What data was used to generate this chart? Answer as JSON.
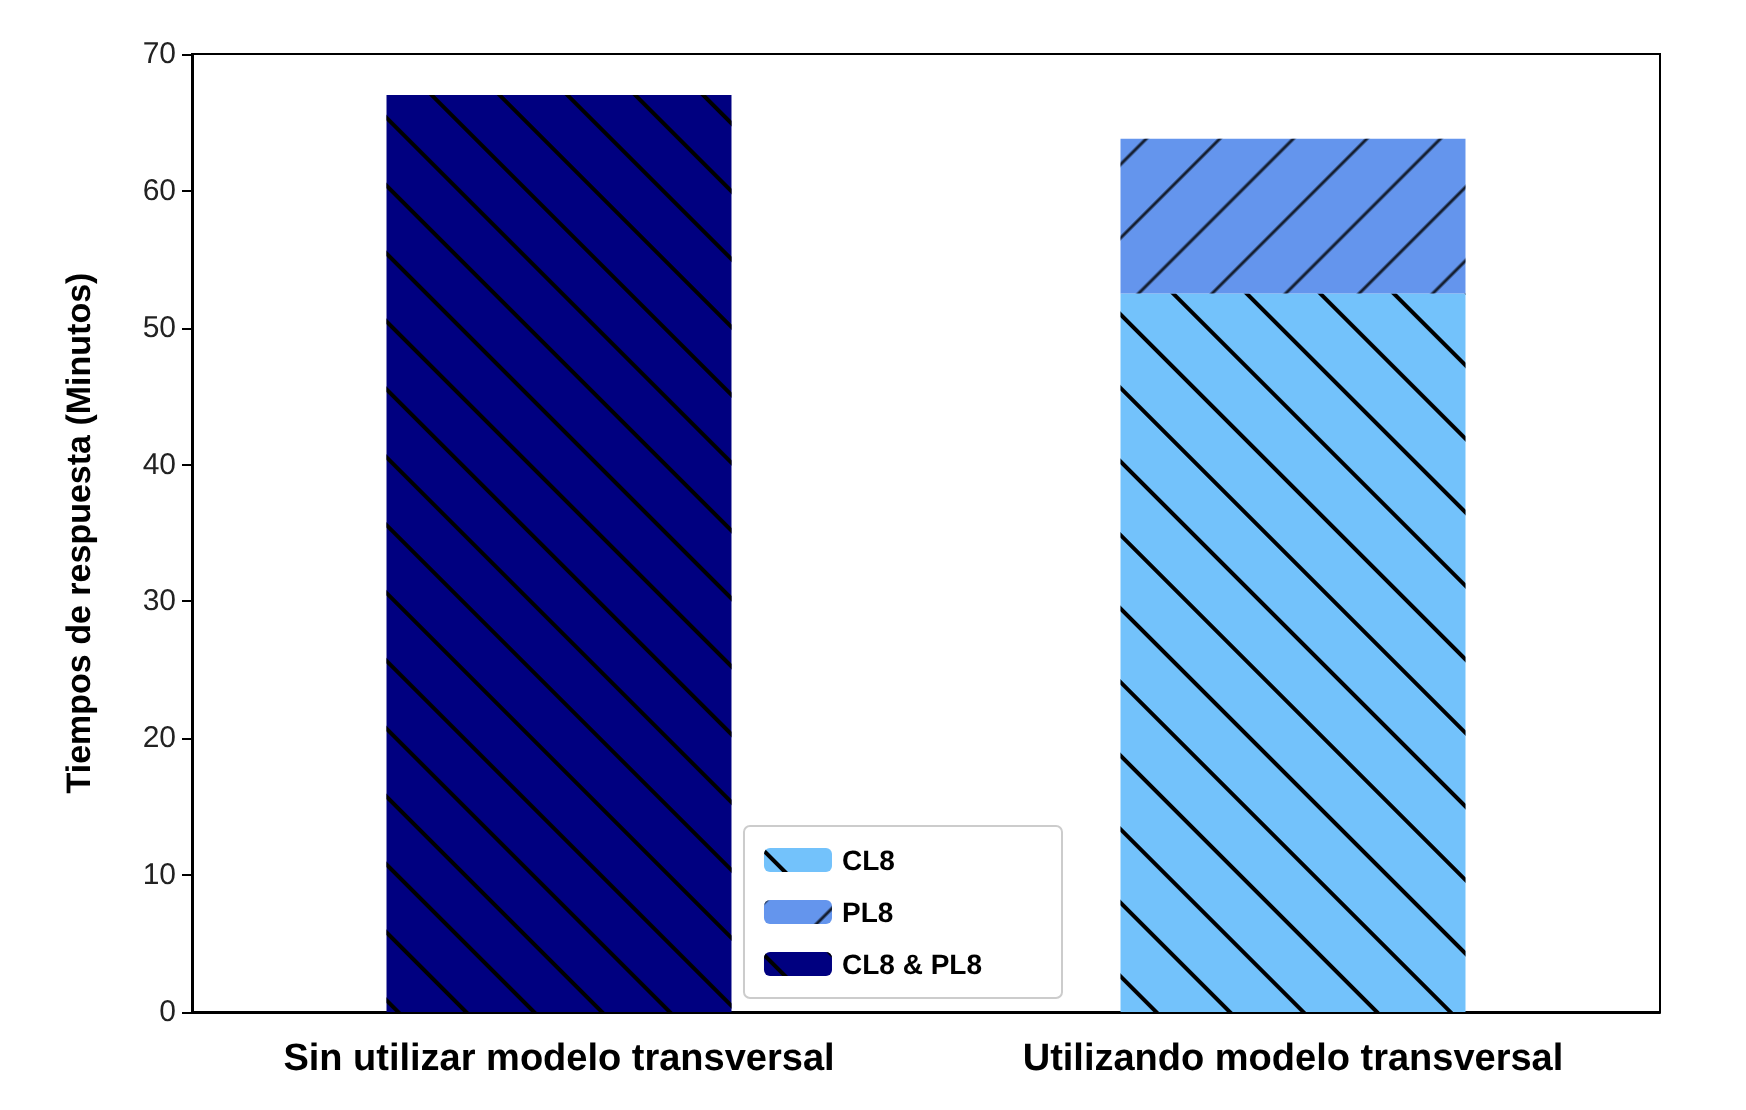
{
  "chart_data": {
    "type": "bar",
    "stacked": true,
    "ylabel": "Tiempos de respuesta (Minutos)",
    "categories": [
      "Sin utilizar modelo transversal",
      "Utilizando modelo transversal"
    ],
    "series": [
      {
        "name": "CL8",
        "color": "#73c2fb",
        "values": [
          null,
          52.5
        ]
      },
      {
        "name": "PL8",
        "color": "#6495ed",
        "values": [
          null,
          11.3
        ]
      },
      {
        "name": "CL8 & PL8",
        "color": "#000080",
        "values": [
          67,
          null
        ]
      }
    ],
    "ylim": [
      0,
      70
    ],
    "yticks": [
      0,
      10,
      20,
      30,
      40,
      50,
      60,
      70
    ],
    "legend": "bottom",
    "grid": false
  }
}
